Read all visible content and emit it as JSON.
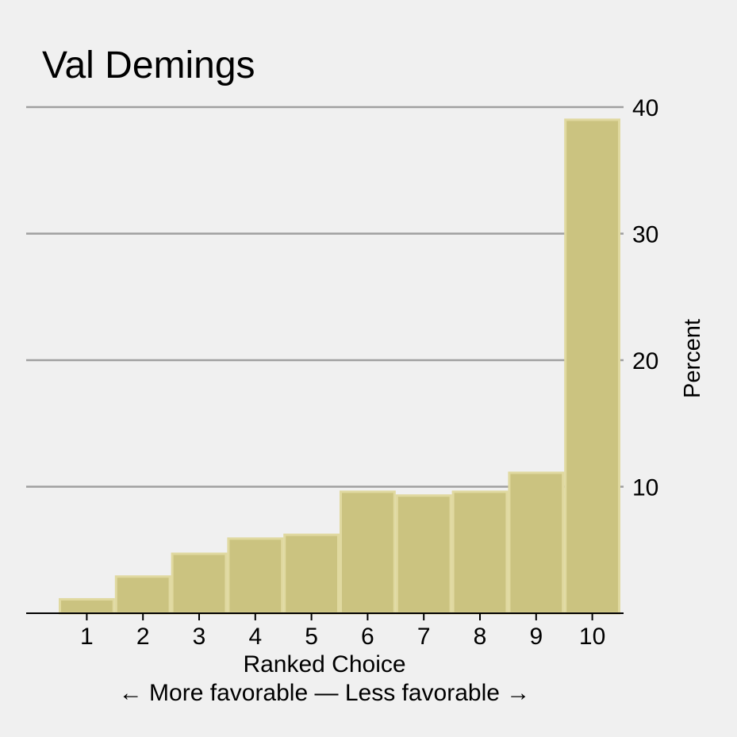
{
  "chart_data": {
    "type": "bar",
    "title": "Val Demings",
    "xlabel": "Ranked Choice",
    "xlabel_sub": "← More favorable — Less favorable →",
    "ylabel": "Percent",
    "categories": [
      "1",
      "2",
      "3",
      "4",
      "5",
      "6",
      "7",
      "8",
      "9",
      "10"
    ],
    "values": [
      1.1,
      2.9,
      4.7,
      5.9,
      6.2,
      9.6,
      9.3,
      9.6,
      11.1,
      39.0
    ],
    "yticks": [
      10,
      20,
      30,
      40
    ],
    "ylim": [
      0,
      40
    ],
    "grid": true,
    "y_axis_side": "right",
    "colors": {
      "bar_fill": "#cbc380",
      "bar_edge": "#e0d9a0",
      "grid": "#a0a0a0",
      "background": "#f0f0f0"
    }
  }
}
